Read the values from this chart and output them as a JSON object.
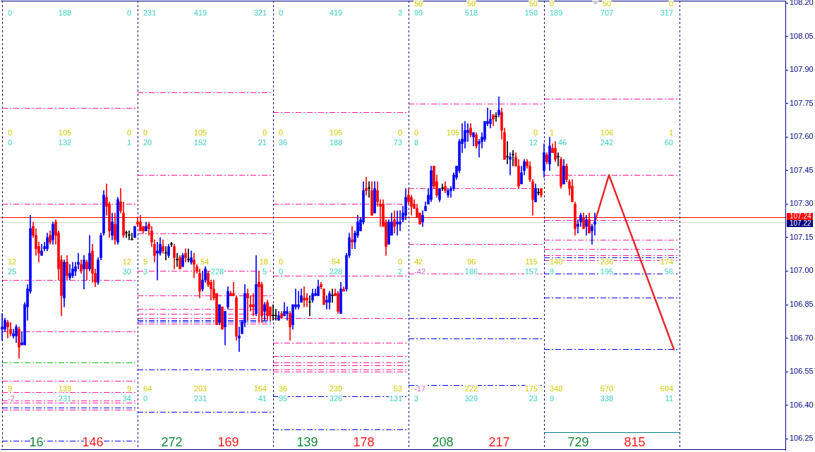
{
  "chart_data": {
    "type": "candlestick",
    "categories": [
      null,
      null,
      null,
      null,
      null,
      null,
      null,
      null,
      null,
      null,
      null,
      null,
      null,
      null,
      null,
      null,
      null,
      null,
      null,
      null,
      null,
      null,
      null,
      null,
      null,
      null,
      null,
      null,
      null,
      null,
      null,
      null,
      null,
      null,
      null,
      null,
      null,
      null,
      null,
      null,
      null,
      null,
      null,
      null,
      null,
      null,
      null,
      null,
      null,
      null,
      null,
      null,
      null,
      null,
      null,
      null,
      null,
      null,
      null,
      null,
      null,
      null,
      null,
      null,
      null,
      null,
      null,
      null,
      null,
      null,
      null,
      null,
      null,
      null,
      null,
      null,
      null,
      null,
      null,
      null,
      null,
      null,
      null,
      null,
      null,
      null,
      null,
      null,
      null,
      null,
      null,
      null,
      null,
      null,
      null,
      null,
      null,
      null,
      null,
      null,
      null,
      null,
      null,
      null,
      null,
      null,
      null,
      null,
      null,
      null,
      null,
      null,
      null,
      null,
      null,
      null,
      null,
      null,
      null,
      null,
      null,
      null,
      null,
      null,
      null,
      null,
      null,
      null,
      null,
      null,
      null,
      null,
      null,
      null,
      null,
      null,
      null,
      null,
      null,
      null,
      null,
      null,
      null,
      null,
      null,
      null,
      null,
      null,
      null,
      null,
      null,
      null,
      null,
      null,
      null,
      null,
      null,
      null,
      null,
      null,
      null,
      null,
      null,
      null,
      null,
      null,
      null,
      null,
      null,
      null,
      null,
      null,
      null,
      null,
      null,
      null,
      null,
      null,
      null,
      null,
      null,
      null,
      null,
      null,
      null,
      null,
      null,
      null,
      null,
      null,
      null,
      null,
      null,
      null,
      null,
      null,
      null,
      null,
      null,
      null,
      null,
      null,
      null,
      null,
      null,
      null,
      null,
      null,
      null,
      null,
      null,
      null,
      null,
      null,
      null,
      null,
      null,
      null,
      null,
      null,
      null,
      null,
      null,
      null,
      null,
      null,
      null,
      null,
      null,
      null,
      null,
      null,
      null,
      null,
      null,
      null,
      null,
      null,
      null,
      null,
      null,
      null,
      null,
      null,
      null,
      null,
      null,
      null,
      null,
      null,
      null,
      null,
      null,
      null,
      null,
      null,
      null,
      null,
      null,
      null,
      null,
      null,
      null,
      null,
      null,
      null,
      null,
      null,
      null,
      null,
      null,
      null,
      null,
      null,
      null,
      null,
      null,
      null
    ],
    "ohlc": [
      [
        106.74,
        106.81,
        106.69,
        106.75
      ],
      [
        106.74,
        106.79,
        106.73,
        106.78
      ],
      [
        106.77,
        106.78,
        106.7,
        106.75
      ],
      [
        106.74,
        106.77,
        106.71,
        106.72
      ],
      [
        106.71,
        106.74,
        106.7,
        106.72
      ],
      [
        106.71,
        106.76,
        106.68,
        106.75
      ],
      [
        106.74,
        106.75,
        106.61,
        106.66
      ],
      [
        106.67,
        106.73,
        106.67,
        106.68
      ],
      [
        106.67,
        106.86,
        106.67,
        106.85
      ],
      [
        106.84,
        106.94,
        106.78,
        106.92
      ],
      [
        106.91,
        107.25,
        106.9,
        107.19
      ],
      [
        107.2,
        107.22,
        107.15,
        107.16
      ],
      [
        107.16,
        107.19,
        107.07,
        107.1
      ],
      [
        107.11,
        107.13,
        107.04,
        107.08
      ],
      [
        107.07,
        107.12,
        107.07,
        107.09
      ],
      [
        107.1,
        107.13,
        107.09,
        107.11
      ],
      [
        107.1,
        107.17,
        107.09,
        107.15
      ],
      [
        107.16,
        107.18,
        107.12,
        107.13
      ],
      [
        107.14,
        107.22,
        107.12,
        107.21
      ],
      [
        107.22,
        107.23,
        107.12,
        107.16
      ],
      [
        107.17,
        107.18,
        106.96,
        107.01
      ],
      [
        107.05,
        107.07,
        106.8,
        106.89
      ],
      [
        106.88,
        107.05,
        106.84,
        107.04
      ],
      [
        107.04,
        107.07,
        106.96,
        106.98
      ],
      [
        106.97,
        107.03,
        106.96,
        106.99
      ],
      [
        106.98,
        107.04,
        106.97,
        107.01
      ],
      [
        107.0,
        107.04,
        106.98,
        107.02
      ],
      [
        107.03,
        107.08,
        107.01,
        107.04
      ],
      [
        107.03,
        107.05,
        106.99,
        107.0
      ],
      [
        107.01,
        107.07,
        106.92,
        107.05
      ],
      [
        107.04,
        107.05,
        106.96,
        107.01
      ],
      [
        107.01,
        107.16,
        107.0,
        107.08
      ],
      [
        107.09,
        107.12,
        106.95,
        106.99
      ],
      [
        106.99,
        107.01,
        106.93,
        106.95
      ],
      [
        106.95,
        107.06,
        106.94,
        107.05
      ],
      [
        107.06,
        107.17,
        107.05,
        107.16
      ],
      [
        107.17,
        107.36,
        107.16,
        107.34
      ],
      [
        107.33,
        107.39,
        107.25,
        107.29
      ],
      [
        107.3,
        107.31,
        107.15,
        107.18
      ],
      [
        107.16,
        107.26,
        107.14,
        107.22
      ],
      [
        107.21,
        107.26,
        107.12,
        107.14
      ],
      [
        107.13,
        107.33,
        107.12,
        107.32
      ],
      [
        107.31,
        107.37,
        107.26,
        107.27
      ],
      [
        107.26,
        107.31,
        107.15,
        107.16
      ],
      [
        107.17,
        107.18,
        107.15,
        107.17
      ],
      [
        107.16,
        107.18,
        107.14,
        107.16
      ],
      [
        107.14,
        107.17,
        107.14,
        107.14
      ],
      [
        107.15,
        107.2,
        107.15,
        107.2
      ],
      [
        107.22,
        107.24,
        107.2,
        107.21
      ],
      [
        107.22,
        107.25,
        107.18,
        107.18
      ],
      [
        107.2,
        107.2,
        107.17,
        107.18
      ],
      [
        107.18,
        107.22,
        107.18,
        107.2
      ],
      [
        107.21,
        107.22,
        107.16,
        107.19
      ],
      [
        107.18,
        107.2,
        107.11,
        107.13
      ],
      [
        107.12,
        107.14,
        107.04,
        107.07
      ],
      [
        107.08,
        107.13,
        106.96,
        107.09
      ],
      [
        107.08,
        107.15,
        107.07,
        107.12
      ],
      [
        107.11,
        107.14,
        107.08,
        107.09
      ],
      [
        107.08,
        107.11,
        107.05,
        107.08
      ],
      [
        107.07,
        107.12,
        107.06,
        107.11
      ],
      [
        107.12,
        107.13,
        107.11,
        107.12
      ],
      [
        107.11,
        107.12,
        107.01,
        107.06
      ],
      [
        107.05,
        107.08,
        107.02,
        107.05
      ],
      [
        107.06,
        107.07,
        107.01,
        107.01
      ],
      [
        107.02,
        107.08,
        107.02,
        107.07
      ],
      [
        107.08,
        107.1,
        107.04,
        107.06
      ],
      [
        107.05,
        107.1,
        107.04,
        107.05
      ],
      [
        107.04,
        107.09,
        107.03,
        107.06
      ],
      [
        107.05,
        107.08,
        106.97,
        107.03
      ],
      [
        107.02,
        107.03,
        106.99,
        107.0
      ],
      [
        106.99,
        107.01,
        106.88,
        106.91
      ],
      [
        106.92,
        107.0,
        106.91,
        106.96
      ],
      [
        106.96,
        107.02,
        106.95,
        107.01
      ],
      [
        106.99,
        107.0,
        106.93,
        106.94
      ],
      [
        106.95,
        106.96,
        106.87,
        106.92
      ],
      [
        106.92,
        106.96,
        106.87,
        106.88
      ],
      [
        106.9,
        106.9,
        106.76,
        106.76
      ],
      [
        106.77,
        106.85,
        106.76,
        106.85
      ],
      [
        106.84,
        106.84,
        106.74,
        106.74
      ],
      [
        106.75,
        106.82,
        106.67,
        106.82
      ],
      [
        106.84,
        106.93,
        106.83,
        106.91
      ],
      [
        106.9,
        106.91,
        106.89,
        106.89
      ],
      [
        106.9,
        106.95,
        106.89,
        106.89
      ],
      [
        106.88,
        106.89,
        106.69,
        106.71
      ],
      [
        106.7,
        106.75,
        106.64,
        106.71
      ],
      [
        106.72,
        106.78,
        106.72,
        106.77
      ],
      [
        106.77,
        106.94,
        106.75,
        106.9
      ],
      [
        106.9,
        106.92,
        106.78,
        106.88
      ],
      [
        106.85,
        106.89,
        106.82,
        106.84
      ],
      [
        106.85,
        106.9,
        106.8,
        106.84
      ],
      [
        106.81,
        107.07,
        106.8,
        106.94
      ],
      [
        106.95,
        107.0,
        106.77,
        106.93
      ],
      [
        106.94,
        106.95,
        106.77,
        106.8
      ],
      [
        106.82,
        106.86,
        106.78,
        106.85
      ],
      [
        106.86,
        106.87,
        106.78,
        106.8
      ],
      [
        106.84,
        106.84,
        106.78,
        106.8
      ],
      [
        106.8,
        106.85,
        106.78,
        106.8
      ],
      [
        106.8,
        106.83,
        106.78,
        106.8
      ],
      [
        106.78,
        106.82,
        106.78,
        106.8
      ],
      [
        106.81,
        106.82,
        106.79,
        106.79
      ],
      [
        106.8,
        106.86,
        106.8,
        106.82
      ],
      [
        106.81,
        106.84,
        106.78,
        106.82
      ],
      [
        106.81,
        106.82,
        106.69,
        106.75
      ],
      [
        106.76,
        106.85,
        106.74,
        106.85
      ],
      [
        106.84,
        106.92,
        106.83,
        106.85
      ],
      [
        106.84,
        106.91,
        106.83,
        106.85
      ],
      [
        106.86,
        106.92,
        106.86,
        106.89
      ],
      [
        106.88,
        106.93,
        106.84,
        106.87
      ],
      [
        106.88,
        106.9,
        106.84,
        106.87
      ],
      [
        106.86,
        106.89,
        106.8,
        106.86
      ],
      [
        106.87,
        106.92,
        106.86,
        106.9
      ],
      [
        106.89,
        106.92,
        106.89,
        106.9
      ],
      [
        106.89,
        106.96,
        106.89,
        106.93
      ],
      [
        106.94,
        106.95,
        106.92,
        106.93
      ],
      [
        106.92,
        106.92,
        106.85,
        106.85
      ],
      [
        106.86,
        106.89,
        106.83,
        106.87
      ],
      [
        106.86,
        106.91,
        106.83,
        106.9
      ],
      [
        106.89,
        106.92,
        106.86,
        106.89
      ],
      [
        106.9,
        106.92,
        106.89,
        106.89
      ],
      [
        106.9,
        106.91,
        106.81,
        106.82
      ],
      [
        106.81,
        106.95,
        106.81,
        106.92
      ],
      [
        106.92,
        106.93,
        106.91,
        106.91
      ],
      [
        106.92,
        107.08,
        106.91,
        107.07
      ],
      [
        107.07,
        107.17,
        107.06,
        107.15
      ],
      [
        107.14,
        107.2,
        107.1,
        107.13
      ],
      [
        107.13,
        107.18,
        107.1,
        107.17
      ],
      [
        107.16,
        107.25,
        107.15,
        107.22
      ],
      [
        107.18,
        107.24,
        107.18,
        107.23
      ],
      [
        107.22,
        107.4,
        107.21,
        107.36
      ],
      [
        107.37,
        107.42,
        107.34,
        107.36
      ],
      [
        107.37,
        107.4,
        107.33,
        107.37
      ],
      [
        107.36,
        107.4,
        107.25,
        107.25
      ],
      [
        107.26,
        107.4,
        107.26,
        107.37
      ],
      [
        107.36,
        107.4,
        107.29,
        107.31
      ],
      [
        107.3,
        107.32,
        107.2,
        107.29
      ],
      [
        107.3,
        107.32,
        107.2,
        107.2
      ],
      [
        107.22,
        107.23,
        107.07,
        107.11
      ],
      [
        107.12,
        107.23,
        107.12,
        107.22
      ],
      [
        107.16,
        107.26,
        107.16,
        107.22
      ],
      [
        107.23,
        107.27,
        107.17,
        107.2
      ],
      [
        107.21,
        107.27,
        107.16,
        107.22
      ],
      [
        107.21,
        107.27,
        107.18,
        107.22
      ],
      [
        107.23,
        107.29,
        107.22,
        107.26
      ],
      [
        107.25,
        107.37,
        107.23,
        107.33
      ],
      [
        107.34,
        107.37,
        107.3,
        107.31
      ],
      [
        107.33,
        107.34,
        107.25,
        107.29
      ],
      [
        107.3,
        107.32,
        107.28,
        107.28
      ],
      [
        107.28,
        107.3,
        107.24,
        107.24
      ],
      [
        107.26,
        107.26,
        107.21,
        107.21
      ],
      [
        107.22,
        107.27,
        107.2,
        107.25
      ],
      [
        107.27,
        107.31,
        107.27,
        107.29
      ],
      [
        107.3,
        107.37,
        107.3,
        107.34
      ],
      [
        107.32,
        107.47,
        107.31,
        107.45
      ],
      [
        107.47,
        107.47,
        107.37,
        107.38
      ],
      [
        107.4,
        107.43,
        107.33,
        107.34
      ],
      [
        107.32,
        107.37,
        107.31,
        107.37
      ],
      [
        107.37,
        107.39,
        107.36,
        107.37
      ],
      [
        107.38,
        107.4,
        107.35,
        107.36
      ],
      [
        107.34,
        107.37,
        107.33,
        107.36
      ],
      [
        107.36,
        107.38,
        107.33,
        107.37
      ],
      [
        107.37,
        107.44,
        107.36,
        107.43
      ],
      [
        107.42,
        107.47,
        107.41,
        107.47
      ],
      [
        107.45,
        107.59,
        107.44,
        107.58
      ],
      [
        107.57,
        107.66,
        107.53,
        107.59
      ],
      [
        107.58,
        107.67,
        107.55,
        107.63
      ],
      [
        107.62,
        107.66,
        107.58,
        107.63
      ],
      [
        107.64,
        107.66,
        107.6,
        107.61
      ],
      [
        107.6,
        107.62,
        107.56,
        107.62
      ],
      [
        107.61,
        107.62,
        107.55,
        107.56
      ],
      [
        107.57,
        107.59,
        107.51,
        107.58
      ],
      [
        107.58,
        107.62,
        107.55,
        107.6
      ],
      [
        107.59,
        107.67,
        107.58,
        107.67
      ],
      [
        107.66,
        107.73,
        107.65,
        107.67
      ],
      [
        107.66,
        107.72,
        107.64,
        107.68
      ],
      [
        107.7,
        107.7,
        107.65,
        107.68
      ],
      [
        107.69,
        107.71,
        107.67,
        107.69
      ],
      [
        107.7,
        107.78,
        107.69,
        107.72
      ],
      [
        107.71,
        107.73,
        107.59,
        107.63
      ],
      [
        107.62,
        107.64,
        107.5,
        107.5
      ],
      [
        107.51,
        107.58,
        107.48,
        107.51
      ],
      [
        107.5,
        107.53,
        107.43,
        107.51
      ],
      [
        107.52,
        107.54,
        107.47,
        107.52
      ],
      [
        107.51,
        107.53,
        107.47,
        107.47
      ],
      [
        107.47,
        107.5,
        107.37,
        107.38
      ],
      [
        107.39,
        107.47,
        107.39,
        107.44
      ],
      [
        107.45,
        107.5,
        107.43,
        107.49
      ],
      [
        107.49,
        107.5,
        107.46,
        107.47
      ],
      [
        107.47,
        107.49,
        107.4,
        107.41
      ],
      [
        107.4,
        107.41,
        107.25,
        107.32
      ],
      [
        107.31,
        107.39,
        107.31,
        107.37
      ],
      [
        107.35,
        107.37,
        107.34,
        107.35
      ],
      [
        107.37,
        107.37,
        107.33,
        107.34
      ],
      [
        107.45,
        107.57,
        107.42,
        107.53
      ],
      [
        107.52,
        107.53,
        107.48,
        107.49
      ],
      [
        107.48,
        107.6,
        107.45,
        107.56
      ],
      [
        107.55,
        107.57,
        107.53,
        107.53
      ],
      [
        107.55,
        107.58,
        107.49,
        107.5
      ],
      [
        107.51,
        107.53,
        107.47,
        107.51
      ],
      [
        107.5,
        107.51,
        107.37,
        107.38
      ],
      [
        107.39,
        107.5,
        107.39,
        107.47
      ],
      [
        107.47,
        107.48,
        107.4,
        107.41
      ],
      [
        107.4,
        107.41,
        107.34,
        107.37
      ],
      [
        107.38,
        107.41,
        107.31,
        107.31
      ],
      [
        107.3,
        107.31,
        107.16,
        107.19
      ],
      [
        107.2,
        107.23,
        107.17,
        107.21
      ],
      [
        107.22,
        107.26,
        107.2,
        107.25
      ],
      [
        107.24,
        107.26,
        107.19,
        107.19
      ],
      [
        107.2,
        107.25,
        107.16,
        107.23
      ],
      [
        107.23,
        107.26,
        107.17,
        107.17
      ],
      [
        107.18,
        107.21,
        107.12,
        107.2
      ],
      [
        107.21,
        107.26,
        107.16,
        107.22
      ],
      null,
      null,
      null,
      null,
      null,
      null,
      null,
      null,
      null,
      null,
      null,
      null,
      null,
      null,
      null,
      null,
      null,
      null,
      null,
      null,
      null,
      null,
      null,
      null,
      null,
      null,
      null,
      null,
      null,
      null,
      null,
      null,
      null,
      null,
      null,
      null,
      null,
      null,
      null,
      null,
      null,
      null,
      null,
      null,
      null,
      null,
      null,
      null,
      null,
      null,
      null,
      null,
      null,
      null,
      null,
      null,
      null,
      null,
      null,
      null,
      null,
      null,
      null,
      null,
      null,
      null,
      null
    ],
    "colors": [
      "#0000ff",
      "#0000ff",
      "#ff0000",
      "#ff0000",
      "#0000ff",
      "#0000ff",
      "#ff0000",
      "#0000ff",
      "#0000ff",
      "#0000ff",
      "#0000ff",
      "#ff0000",
      "#ff0000",
      "#ff0000",
      "#0000ff",
      "#0000ff",
      "#0000ff",
      "#ff0000",
      "#0000ff",
      "#ff0000",
      "#ff0000",
      "#ff0000",
      "#0000ff",
      "#ff0000",
      "#0000ff",
      "#0000ff",
      "#0000ff",
      "#0000ff",
      "#ff0000",
      "#0000ff",
      "#ff0000",
      "#0000ff",
      "#ff0000",
      "#ff0000",
      "#0000ff",
      "#0000ff",
      "#0000ff",
      "#ff0000",
      "#ff0000",
      "#0000ff",
      "#ff0000",
      "#0000ff",
      "#ff0000",
      "#ff0000",
      "#000000",
      "#000000",
      "#000000",
      "#0000ff",
      "#ff0000",
      "#ff0000",
      "#ff0000",
      "#0000ff",
      "#ff0000",
      "#ff0000",
      "#ff0000",
      "#0000ff",
      "#0000ff",
      "#ff0000",
      "#000000",
      "#0000ff",
      "#000000",
      "#ff0000",
      "#000000",
      "#ff0000",
      "#0000ff",
      "#ff0000",
      "#000000",
      "#0000ff",
      "#ff0000",
      "#ff0000",
      "#ff0000",
      "#0000ff",
      "#0000ff",
      "#ff0000",
      "#ff0000",
      "#ff0000",
      "#ff0000",
      "#0000ff",
      "#ff0000",
      "#0000ff",
      "#0000ff",
      "#ff0000",
      "#ff0000",
      "#ff0000",
      "#0000ff",
      "#0000ff",
      "#0000ff",
      "#ff0000",
      "#ff0000",
      "#ff0000",
      "#0000ff",
      "#ff0000",
      "#ff0000",
      "#0000ff",
      "#ff0000",
      "#ff0000",
      "#000000",
      "#000000",
      "#0000ff",
      "#ff0000",
      "#0000ff",
      "#0000ff",
      "#ff0000",
      "#0000ff",
      "#0000ff",
      "#0000ff",
      "#0000ff",
      "#ff0000",
      "#ff0000",
      "#000000",
      "#0000ff",
      "#0000ff",
      "#0000ff",
      "#ff0000",
      "#ff0000",
      "#0000ff",
      "#0000ff",
      "#000000",
      "#ff0000",
      "#ff0000",
      "#0000ff",
      "#ff0000",
      "#0000ff",
      "#0000ff",
      "#ff0000",
      "#0000ff",
      "#0000ff",
      "#0000ff",
      "#0000ff",
      "#ff0000",
      "#000000",
      "#ff0000",
      "#0000ff",
      "#ff0000",
      "#ff0000",
      "#ff0000",
      "#ff0000",
      "#0000ff",
      "#0000ff",
      "#ff0000",
      "#0000ff",
      "#0000ff",
      "#0000ff",
      "#0000ff",
      "#ff0000",
      "#ff0000",
      "#ff0000",
      "#ff0000",
      "#ff0000",
      "#0000ff",
      "#0000ff",
      "#0000ff",
      "#0000ff",
      "#ff0000",
      "#ff0000",
      "#0000ff",
      "#000000",
      "#ff0000",
      "#0000ff",
      "#0000ff",
      "#0000ff",
      "#0000ff",
      "#0000ff",
      "#0000ff",
      "#0000ff",
      "#0000ff",
      "#ff0000",
      "#0000ff",
      "#ff0000",
      "#0000ff",
      "#0000ff",
      "#0000ff",
      "#0000ff",
      "#0000ff",
      "#ff0000",
      "#000000",
      "#0000ff",
      "#ff0000",
      "#ff0000",
      "#000000",
      "#0000ff",
      "#000000",
      "#ff0000",
      "#ff0000",
      "#0000ff",
      "#0000ff",
      "#ff0000",
      "#ff0000",
      "#ff0000",
      "#0000ff",
      "#000000",
      "#ff0000",
      "#0000ff",
      "#ff0000",
      "#0000ff",
      "#ff0000",
      "#ff0000",
      "#000000",
      "#ff0000",
      "#0000ff",
      "#ff0000",
      "#ff0000",
      "#ff0000",
      "#ff0000",
      "#0000ff",
      "#0000ff",
      "#ff0000",
      "#0000ff",
      "#ff0000",
      "#0000ff",
      "#0000ff",
      null,
      null,
      null,
      null,
      null,
      null,
      null,
      null,
      null,
      null,
      null,
      null,
      null,
      null,
      null,
      null,
      null,
      null,
      null,
      null,
      null,
      null,
      null,
      null,
      null,
      null,
      null,
      null,
      null,
      null,
      null,
      null,
      null,
      null,
      null,
      null,
      null,
      null,
      null,
      null,
      null,
      null,
      null,
      null,
      null,
      null,
      null,
      null,
      null,
      null,
      null,
      null,
      null,
      null,
      null,
      null,
      null,
      null,
      null,
      null,
      null,
      null,
      null,
      null,
      null,
      null,
      null
    ],
    "series": [
      {
        "type": "line",
        "color": "#e8262b",
        "values": [
          null,
          null,
          null,
          null,
          null,
          null,
          null,
          null,
          null,
          null,
          null,
          null,
          null,
          null,
          null,
          null,
          null,
          null,
          null,
          null,
          null,
          null,
          null,
          null,
          null,
          null,
          null,
          null,
          null,
          null,
          null,
          null,
          null,
          null,
          null,
          null,
          null,
          null,
          null,
          null,
          null,
          null,
          null,
          null,
          null,
          null,
          null,
          null,
          null,
          null,
          null,
          null,
          null,
          null,
          null,
          null,
          null,
          null,
          null,
          null,
          null,
          null,
          null,
          null,
          null,
          null,
          null,
          null,
          null,
          null,
          null,
          null,
          null,
          null,
          null,
          null,
          null,
          null,
          null,
          null,
          null,
          null,
          null,
          null,
          null,
          null,
          null,
          null,
          null,
          null,
          null,
          null,
          null,
          null,
          null,
          null,
          null,
          null,
          null,
          null,
          null,
          null,
          null,
          null,
          null,
          null,
          null,
          null,
          null,
          null,
          null,
          null,
          null,
          null,
          null,
          null,
          null,
          null,
          null,
          null,
          null,
          null,
          null,
          null,
          null,
          null,
          null,
          null,
          null,
          null,
          null,
          null,
          null,
          null,
          null,
          null,
          null,
          null,
          null,
          null,
          null,
          null,
          null,
          null,
          null,
          null,
          null,
          null,
          null,
          null,
          null,
          null,
          null,
          null,
          null,
          null,
          null,
          null,
          null,
          null,
          null,
          null,
          null,
          null,
          null,
          null,
          null,
          null,
          null,
          null,
          null,
          null,
          null,
          null,
          null,
          null,
          null,
          null,
          null,
          null,
          null,
          null,
          null,
          null,
          null,
          null,
          null,
          null,
          null,
          null,
          null,
          null,
          null,
          null,
          null,
          null,
          null,
          null,
          null,
          null,
          null,
          null,
          null,
          null,
          null,
          null,
          null,
          null,
          null,
          null,
          107.22,
          null,
          null,
          null,
          null,
          107.43,
          null,
          null,
          null,
          null,
          null,
          null,
          null,
          null,
          null,
          null,
          null,
          null,
          null,
          null,
          null,
          null,
          null,
          null,
          null,
          null,
          null,
          null,
          106.65,
          null,
          null,
          null,
          null,
          null,
          null,
          null,
          null,
          null,
          null,
          null,
          null,
          null,
          null,
          null,
          null,
          null,
          null,
          null,
          null,
          null,
          null,
          null,
          null,
          null,
          null,
          null,
          null,
          null,
          null,
          null,
          null,
          null,
          null,
          null,
          null,
          null,
          null,
          null
        ]
      }
    ],
    "ylim": [
      106.2,
      108.21
    ],
    "tick_labels": "y",
    "yticks": [
      106.25,
      {
        "value": 106.4,
        "label": "106.40"
      },
      106.55,
      {
        "value": 106.7,
        "label": "106.70"
      },
      106.85,
      {
        "value": 107,
        "label": "107.00"
      },
      107.15,
      {
        "value": 107.3,
        "label": "107.30"
      },
      107.45,
      {
        "value": 107.6,
        "label": "107.60"
      },
      107.75,
      {
        "value": 107.9,
        "label": "107.90"
      },
      108.05,
      {
        "value": 108.2,
        "label": "108.20"
      }
    ],
    "ref_lines": [
      {
        "axis": "y",
        "value": 107.24,
        "color": "#ff0000",
        "line_style": "solid",
        "label": "107.24"
      },
      {
        "axis": "y",
        "value": 107.22,
        "color": "#d3d3d3",
        "line_style": "solid",
        "label": "107.22"
      },
      {
        "axis": "y",
        "value": 107.73,
        "color": "#ff1493",
        "line_style": "dashed"
      },
      {
        "axis": "y",
        "value": 107.3,
        "color": "#ff1493",
        "line_style": "dashed"
      },
      {
        "axis": "y",
        "value": 106.96,
        "color": "#ff1493",
        "line_style": "dashed"
      },
      {
        "axis": "y",
        "value": 106.73,
        "color": "#ff1493",
        "line_style": "dashed"
      },
      {
        "axis": "y",
        "value": 106.59,
        "color": "#00c000",
        "line_style": "dashed"
      },
      {
        "axis": "y",
        "value": 106.51,
        "color": "#ff1493",
        "line_style": "dashed"
      },
      {
        "axis": "y",
        "value": 106.46,
        "color": "#ff1493",
        "line_style": "dashed"
      },
      {
        "axis": "y",
        "value": 106.42,
        "color": "#ff1493",
        "line_style": "dashed"
      },
      {
        "axis": "y",
        "value": 106.41,
        "color": "#ff1493",
        "line_style": "dashed"
      },
      {
        "axis": "y",
        "value": 106.39,
        "color": "#0000ff",
        "line_style": "dashed"
      },
      {
        "axis": "y",
        "value": 106.38,
        "color": "#ff1493",
        "line_style": "dashed"
      },
      {
        "axis": "y",
        "value": 106.24,
        "color": "#0000ff",
        "line_style": "dashed"
      },
      {
        "axis": "y",
        "value": 107.8,
        "color": "#ff1493",
        "line_style": "dashed"
      },
      {
        "axis": "y",
        "value": 107.43,
        "color": "#ff1493",
        "line_style": "dashed"
      },
      {
        "axis": "y",
        "value": 107.17,
        "color": "#ff1493",
        "line_style": "dashed"
      },
      {
        "axis": "y",
        "value": 107.0,
        "color": "#ff1493",
        "line_style": "dashed"
      },
      {
        "axis": "y",
        "value": 106.89,
        "color": "#ff1493",
        "line_style": "dashed"
      },
      {
        "axis": "y",
        "value": 106.83,
        "color": "#ff1493",
        "line_style": "dashed"
      },
      {
        "axis": "y",
        "value": 106.81,
        "color": "#ff1493",
        "line_style": "dashed"
      },
      {
        "axis": "y",
        "value": 106.79,
        "color": "#ff1493",
        "line_style": "dashed"
      },
      {
        "axis": "y",
        "value": 106.78,
        "color": "#0000ff",
        "line_style": "dashed"
      },
      {
        "axis": "y",
        "value": 106.775,
        "color": "#0000ff",
        "line_style": "dashed"
      },
      {
        "axis": "y",
        "value": 106.765,
        "color": "#ff1493",
        "line_style": "dashed"
      },
      {
        "axis": "y",
        "value": 106.56,
        "color": "#0000ff",
        "line_style": "dashed"
      },
      {
        "axis": "y",
        "value": 106.37,
        "color": "#0000ff",
        "line_style": "dashed"
      },
      {
        "axis": "y",
        "value": 107.71,
        "color": "#ff1493",
        "line_style": "dashed"
      },
      {
        "axis": "y",
        "value": 106.98,
        "color": "#ff1493",
        "line_style": "dashed"
      },
      {
        "axis": "y",
        "value": 106.68,
        "color": "#ff1493",
        "line_style": "dashed"
      },
      {
        "axis": "y",
        "value": 106.62,
        "color": "#ff1493",
        "line_style": "dashed"
      },
      {
        "axis": "y",
        "value": 106.59,
        "color": "#ff1493",
        "line_style": "dashed"
      },
      {
        "axis": "y",
        "value": 106.58,
        "color": "#ff1493",
        "line_style": "dashed"
      },
      {
        "axis": "y",
        "value": 106.56,
        "color": "#ff1493",
        "line_style": "dashed"
      },
      {
        "axis": "y",
        "value": 106.55,
        "color": "#ff1493",
        "line_style": "dashed"
      },
      {
        "axis": "y",
        "value": 106.44,
        "color": "#0000ff",
        "line_style": "dashed"
      },
      {
        "axis": "y",
        "value": 106.29,
        "color": "#0000ff",
        "line_style": "dashed"
      },
      {
        "axis": "y",
        "value": 107.75,
        "color": "#ff1493",
        "line_style": "dashed"
      },
      {
        "axis": "y",
        "value": 107.37,
        "color": "#ff1493",
        "line_style": "dashed"
      },
      {
        "axis": "y",
        "value": 107.12,
        "color": "#ff1493",
        "line_style": "dashed"
      },
      {
        "axis": "y",
        "value": 106.99,
        "color": "#ff1493",
        "line_style": "dashed"
      },
      {
        "axis": "y",
        "value": 106.79,
        "color": "#0000ff",
        "line_style": "dashed"
      },
      {
        "axis": "y",
        "value": 106.7,
        "color": "#0000ff",
        "line_style": "dashed"
      },
      {
        "axis": "y",
        "value": 106.49,
        "color": "#0000ff",
        "line_style": "dashed"
      },
      {
        "axis": "y",
        "value": 107.77,
        "color": "#ff1493",
        "line_style": "dashed"
      },
      {
        "axis": "y",
        "value": 107.23,
        "color": "#ff1493",
        "line_style": "dashed"
      },
      {
        "axis": "y",
        "value": 107.14,
        "color": "#ff1493",
        "line_style": "dashed"
      },
      {
        "axis": "y",
        "value": 107.1,
        "color": "#ff1493",
        "line_style": "dashed"
      },
      {
        "axis": "y",
        "value": 107.07,
        "color": "#ff1493",
        "line_style": "dashed"
      },
      {
        "axis": "y",
        "value": 107.06,
        "color": "#0000ff",
        "line_style": "dashed"
      },
      {
        "axis": "y",
        "value": 107.05,
        "color": "#ff1493",
        "line_style": "dashed"
      },
      {
        "axis": "y",
        "value": 106.99,
        "color": "#0000ff",
        "line_style": "dashed"
      },
      {
        "axis": "y",
        "value": 106.88,
        "color": "#0000ff",
        "line_style": "dashed"
      },
      {
        "axis": "y",
        "value": 106.65,
        "color": "#0000ff",
        "line_style": "dashed"
      },
      {
        "axis": "y",
        "value": 106.28,
        "color": "#008080",
        "line_style": "solid"
      }
    ],
    "annotations": [
      "0",
      "188",
      "0",
      "0",
      "105",
      "0",
      "0",
      "132",
      "1",
      "12",
      "12",
      "25",
      "30",
      "9",
      "139",
      "9",
      "-2",
      "231",
      "34",
      "16",
      "146",
      "231",
      "419",
      "321",
      "0",
      "105",
      "0",
      "20",
      "152",
      "21",
      "5",
      "54",
      "18",
      "3",
      "228",
      "5",
      "64",
      "203",
      "164",
      "0",
      "231",
      "41",
      "272",
      "169",
      "0",
      "419",
      "3",
      "0",
      "105",
      "0",
      "36",
      "188",
      "73",
      "0",
      "54",
      "0",
      "0",
      "228",
      "2",
      "36",
      "239",
      "53",
      "95",
      "326",
      "131",
      "139",
      "178",
      "50",
      "50",
      "50",
      "99",
      "518",
      "150",
      "0",
      "105",
      "0",
      "8",
      "12",
      "42",
      "96",
      "115",
      "-42",
      "186",
      "157",
      "-17",
      "222",
      "175",
      "3",
      "329",
      "23",
      "208",
      "217",
      "0",
      "50",
      "0",
      "189",
      "707",
      "317",
      "1",
      "106",
      "1",
      "46",
      "242",
      "60",
      "140",
      "236",
      "174",
      "9",
      "195",
      "56",
      "348",
      "570",
      "604",
      "9",
      "338",
      "11",
      "729",
      "815"
    ]
  }
}
